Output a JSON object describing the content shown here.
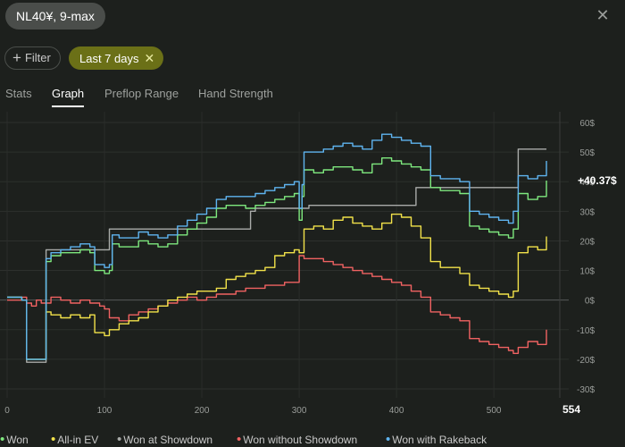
{
  "header": {
    "game_label": "NL40¥, 9-max",
    "close_icon": "close-icon"
  },
  "filters": {
    "filter_label": "Filter",
    "period_label": "Last 7 days",
    "period_color": "#6b7017"
  },
  "tabs": [
    {
      "label": "Stats",
      "active": false
    },
    {
      "label": "Graph",
      "active": true
    },
    {
      "label": "Preflop Range",
      "active": false
    },
    {
      "label": "Hand Strength",
      "active": false
    }
  ],
  "chart_data": {
    "type": "line",
    "xlim": [
      0,
      554
    ],
    "ylim": [
      -30,
      60
    ],
    "x_ticks": [
      0,
      100,
      200,
      300,
      400,
      500
    ],
    "x_end_label": "554",
    "y_ticks": [
      60,
      50,
      40,
      30,
      20,
      10,
      0,
      -10,
      -20,
      -30
    ],
    "y_tick_labels": [
      "60$",
      "50$",
      "40$",
      "30$",
      "20$",
      "10$",
      "0$",
      "-10$",
      "-20$",
      "-30$"
    ],
    "grid": true,
    "legend": "bottom",
    "final_value_label": "+40.37$",
    "series": [
      {
        "name": "Won",
        "color": "#7ee87e",
        "x": [
          0,
          10,
          15,
          20,
          25,
          30,
          35,
          40,
          45,
          55,
          65,
          75,
          85,
          90,
          95,
          100,
          105,
          108,
          115,
          125,
          135,
          145,
          155,
          165,
          175,
          185,
          195,
          205,
          215,
          225,
          235,
          245,
          255,
          265,
          275,
          285,
          295,
          300,
          303,
          305,
          315,
          325,
          335,
          345,
          355,
          365,
          375,
          385,
          395,
          405,
          415,
          425,
          435,
          445,
          455,
          465,
          475,
          485,
          495,
          505,
          515,
          520,
          525,
          535,
          545,
          554
        ],
        "y": [
          1,
          1,
          0,
          -20,
          -20,
          -20,
          -20,
          13,
          15,
          16,
          16,
          17,
          16,
          10,
          10,
          9,
          10,
          19,
          18,
          18,
          20,
          19,
          18,
          19,
          22,
          24,
          26,
          28,
          31,
          32,
          32,
          31,
          32,
          33,
          34,
          35,
          36,
          27,
          35,
          44,
          43,
          44,
          45,
          45,
          44,
          43,
          46,
          48,
          47,
          46,
          45,
          44,
          38,
          37,
          37,
          36,
          25,
          24,
          23,
          22,
          21,
          24,
          36,
          34,
          35,
          40.37
        ]
      },
      {
        "name": "All-in EV",
        "color": "#f2e24a",
        "x": [
          0,
          10,
          15,
          20,
          25,
          30,
          35,
          40,
          45,
          55,
          65,
          75,
          85,
          90,
          95,
          100,
          105,
          115,
          125,
          135,
          145,
          155,
          165,
          175,
          185,
          195,
          205,
          215,
          225,
          235,
          245,
          255,
          265,
          275,
          285,
          295,
          300,
          305,
          315,
          325,
          335,
          345,
          355,
          365,
          375,
          385,
          395,
          405,
          415,
          425,
          435,
          445,
          455,
          465,
          475,
          485,
          495,
          505,
          515,
          520,
          525,
          535,
          545,
          554
        ],
        "y": [
          1,
          1,
          0,
          -20,
          -20,
          -20,
          -20,
          -4,
          -5,
          -6,
          -5,
          -6,
          -5,
          -11,
          -11,
          -12,
          -10,
          -8,
          -7,
          -6,
          -4,
          -2,
          0,
          1,
          2,
          3,
          3,
          4,
          7,
          8,
          9,
          10,
          11,
          15,
          16,
          17,
          16,
          24,
          25,
          24,
          27,
          28,
          26,
          25,
          24,
          26,
          29,
          28,
          25,
          21,
          13,
          11,
          11,
          9,
          5,
          4,
          3,
          2,
          1,
          3,
          16,
          18,
          17,
          21.5
        ]
      },
      {
        "name": "Won at Showdown",
        "color": "#a9aba9",
        "x": [
          0,
          10,
          15,
          20,
          25,
          30,
          35,
          40,
          100,
          105,
          240,
          250,
          255,
          260,
          300,
          310,
          410,
          420,
          520,
          525,
          554
        ],
        "y": [
          1,
          1,
          0,
          -21,
          -21,
          -21,
          -21,
          17,
          17,
          24,
          24,
          30,
          31,
          31,
          31,
          32,
          32,
          38,
          38,
          51,
          51
        ]
      },
      {
        "name": "Won without Showdown",
        "color": "#f06262",
        "x": [
          0,
          10,
          15,
          20,
          25,
          30,
          35,
          45,
          55,
          65,
          75,
          85,
          95,
          100,
          105,
          115,
          125,
          135,
          145,
          155,
          165,
          175,
          185,
          195,
          205,
          215,
          225,
          235,
          245,
          255,
          265,
          275,
          285,
          295,
          300,
          305,
          315,
          325,
          335,
          345,
          355,
          365,
          375,
          385,
          395,
          405,
          415,
          425,
          435,
          445,
          455,
          465,
          475,
          485,
          495,
          505,
          515,
          520,
          525,
          535,
          545,
          554
        ],
        "y": [
          0,
          0,
          1,
          -1,
          -2,
          0,
          -1,
          1,
          0,
          -1,
          0,
          -1,
          -2,
          -3,
          -6,
          -7,
          -5,
          -4,
          -3,
          -2,
          -1,
          0,
          1,
          0,
          1,
          2,
          2,
          3,
          4,
          4,
          5,
          5,
          6,
          6,
          15,
          14,
          14,
          13,
          12,
          11,
          10,
          9,
          8,
          7,
          6,
          5,
          3,
          1,
          -4,
          -5,
          -6,
          -7,
          -13,
          -14,
          -15,
          -16,
          -17,
          -18,
          -16,
          -14,
          -15,
          -10
        ]
      },
      {
        "name": "Won with Rakeback",
        "color": "#5fb4f0",
        "x": [
          0,
          10,
          15,
          20,
          25,
          30,
          35,
          40,
          45,
          55,
          65,
          75,
          85,
          90,
          95,
          100,
          105,
          108,
          115,
          125,
          135,
          145,
          155,
          165,
          175,
          185,
          195,
          205,
          215,
          225,
          235,
          245,
          255,
          265,
          275,
          285,
          295,
          300,
          303,
          305,
          315,
          325,
          335,
          345,
          355,
          365,
          375,
          385,
          395,
          405,
          415,
          425,
          435,
          445,
          455,
          465,
          475,
          485,
          495,
          505,
          515,
          520,
          525,
          535,
          545,
          554
        ],
        "y": [
          1,
          1,
          0,
          -20,
          -20,
          -20,
          -20,
          14,
          16,
          17,
          18,
          19,
          18,
          12,
          12,
          11,
          12,
          22,
          21,
          21,
          23,
          22,
          21,
          22,
          25,
          27,
          29,
          31,
          34,
          35,
          35,
          35,
          36,
          37,
          38,
          39,
          40,
          31,
          39,
          50,
          50,
          51,
          52,
          53,
          52,
          51,
          54,
          56,
          55,
          54,
          53,
          52,
          42,
          41,
          41,
          40,
          30,
          29,
          28,
          27,
          26,
          30,
          42,
          41,
          42,
          47
        ]
      }
    ]
  }
}
